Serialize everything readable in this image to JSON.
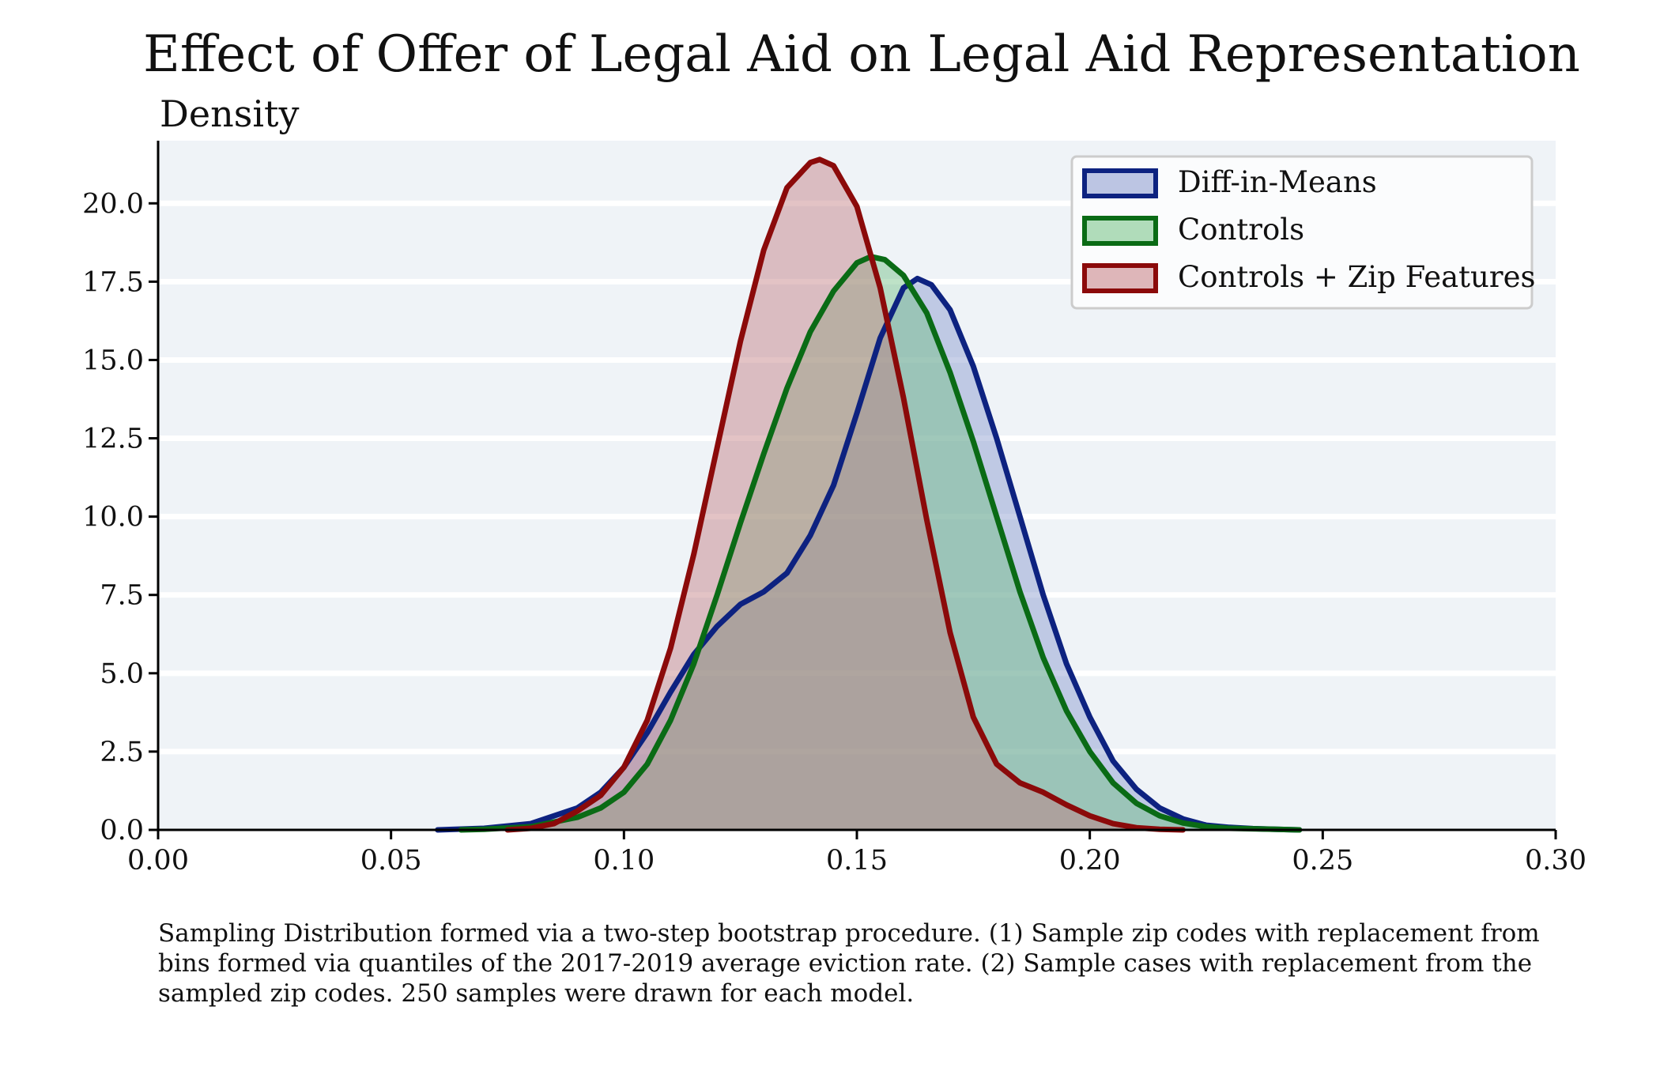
{
  "chart_data": {
    "type": "area",
    "title": "Effect of Offer of Legal Aid on Legal Aid Representation",
    "ylabel": "Density",
    "xlabel": "",
    "xlim": [
      0.0,
      0.3
    ],
    "ylim": [
      0,
      22
    ],
    "x_ticks": [
      "0.00",
      "0.05",
      "0.10",
      "0.15",
      "0.20",
      "0.25",
      "0.30"
    ],
    "x_tick_values": [
      0.0,
      0.05,
      0.1,
      0.15,
      0.2,
      0.25,
      0.3
    ],
    "y_ticks": [
      "0.0",
      "2.5",
      "5.0",
      "7.5",
      "10.0",
      "12.5",
      "15.0",
      "17.5",
      "20.0"
    ],
    "y_tick_values": [
      0,
      2.5,
      5,
      7.5,
      10,
      12.5,
      15,
      17.5,
      20
    ],
    "grid": "horizontal",
    "legend_position": "top-right",
    "series": [
      {
        "name": "Diff-in-Means",
        "line_color": "#0d2280",
        "fill_color": "#8596cc",
        "points": [
          [
            0.06,
            0.0
          ],
          [
            0.07,
            0.05
          ],
          [
            0.08,
            0.2
          ],
          [
            0.09,
            0.7
          ],
          [
            0.095,
            1.2
          ],
          [
            0.1,
            2.0
          ],
          [
            0.105,
            3.1
          ],
          [
            0.11,
            4.4
          ],
          [
            0.115,
            5.6
          ],
          [
            0.12,
            6.5
          ],
          [
            0.125,
            7.2
          ],
          [
            0.13,
            7.6
          ],
          [
            0.135,
            8.2
          ],
          [
            0.14,
            9.4
          ],
          [
            0.145,
            11.0
          ],
          [
            0.15,
            13.3
          ],
          [
            0.155,
            15.7
          ],
          [
            0.16,
            17.3
          ],
          [
            0.163,
            17.6
          ],
          [
            0.166,
            17.4
          ],
          [
            0.17,
            16.6
          ],
          [
            0.175,
            14.8
          ],
          [
            0.18,
            12.5
          ],
          [
            0.185,
            10.0
          ],
          [
            0.19,
            7.5
          ],
          [
            0.195,
            5.3
          ],
          [
            0.2,
            3.6
          ],
          [
            0.205,
            2.2
          ],
          [
            0.21,
            1.3
          ],
          [
            0.215,
            0.7
          ],
          [
            0.22,
            0.35
          ],
          [
            0.225,
            0.15
          ],
          [
            0.23,
            0.08
          ],
          [
            0.235,
            0.04
          ],
          [
            0.24,
            0.02
          ],
          [
            0.245,
            0.0
          ]
        ]
      },
      {
        "name": "Controls",
        "line_color": "#0a6b15",
        "fill_color": "#6fbf82",
        "points": [
          [
            0.065,
            0.0
          ],
          [
            0.07,
            0.02
          ],
          [
            0.08,
            0.1
          ],
          [
            0.09,
            0.4
          ],
          [
            0.095,
            0.7
          ],
          [
            0.1,
            1.2
          ],
          [
            0.105,
            2.1
          ],
          [
            0.11,
            3.5
          ],
          [
            0.115,
            5.3
          ],
          [
            0.12,
            7.5
          ],
          [
            0.125,
            9.8
          ],
          [
            0.13,
            12.0
          ],
          [
            0.135,
            14.1
          ],
          [
            0.14,
            15.9
          ],
          [
            0.145,
            17.2
          ],
          [
            0.15,
            18.1
          ],
          [
            0.153,
            18.3
          ],
          [
            0.156,
            18.2
          ],
          [
            0.16,
            17.7
          ],
          [
            0.165,
            16.5
          ],
          [
            0.17,
            14.6
          ],
          [
            0.175,
            12.4
          ],
          [
            0.18,
            10.0
          ],
          [
            0.185,
            7.6
          ],
          [
            0.19,
            5.5
          ],
          [
            0.195,
            3.8
          ],
          [
            0.2,
            2.5
          ],
          [
            0.205,
            1.5
          ],
          [
            0.21,
            0.85
          ],
          [
            0.215,
            0.45
          ],
          [
            0.22,
            0.22
          ],
          [
            0.225,
            0.1
          ],
          [
            0.23,
            0.05
          ],
          [
            0.24,
            0.02
          ],
          [
            0.245,
            0.0
          ]
        ]
      },
      {
        "name": "Controls + Zip Features",
        "line_color": "#8b0a0a",
        "fill_color": "#c27a7f",
        "points": [
          [
            0.075,
            0.0
          ],
          [
            0.08,
            0.05
          ],
          [
            0.085,
            0.2
          ],
          [
            0.09,
            0.6
          ],
          [
            0.095,
            1.1
          ],
          [
            0.1,
            2.0
          ],
          [
            0.105,
            3.5
          ],
          [
            0.11,
            5.8
          ],
          [
            0.115,
            8.8
          ],
          [
            0.12,
            12.2
          ],
          [
            0.125,
            15.6
          ],
          [
            0.13,
            18.5
          ],
          [
            0.135,
            20.5
          ],
          [
            0.14,
            21.3
          ],
          [
            0.142,
            21.4
          ],
          [
            0.145,
            21.2
          ],
          [
            0.15,
            19.9
          ],
          [
            0.155,
            17.3
          ],
          [
            0.16,
            13.8
          ],
          [
            0.165,
            9.9
          ],
          [
            0.17,
            6.3
          ],
          [
            0.175,
            3.6
          ],
          [
            0.18,
            2.1
          ],
          [
            0.185,
            1.5
          ],
          [
            0.19,
            1.2
          ],
          [
            0.195,
            0.8
          ],
          [
            0.2,
            0.45
          ],
          [
            0.205,
            0.2
          ],
          [
            0.21,
            0.07
          ],
          [
            0.215,
            0.02
          ],
          [
            0.22,
            0.0
          ]
        ]
      }
    ]
  },
  "caption": "Sampling Distribution formed via a two-step bootstrap procedure. (1) Sample zip codes with replacement from bins formed via quantiles of the 2017-2019 average eviction rate. (2) Sample cases with replacement from the sampled zip codes. 250 samples were drawn for each model."
}
